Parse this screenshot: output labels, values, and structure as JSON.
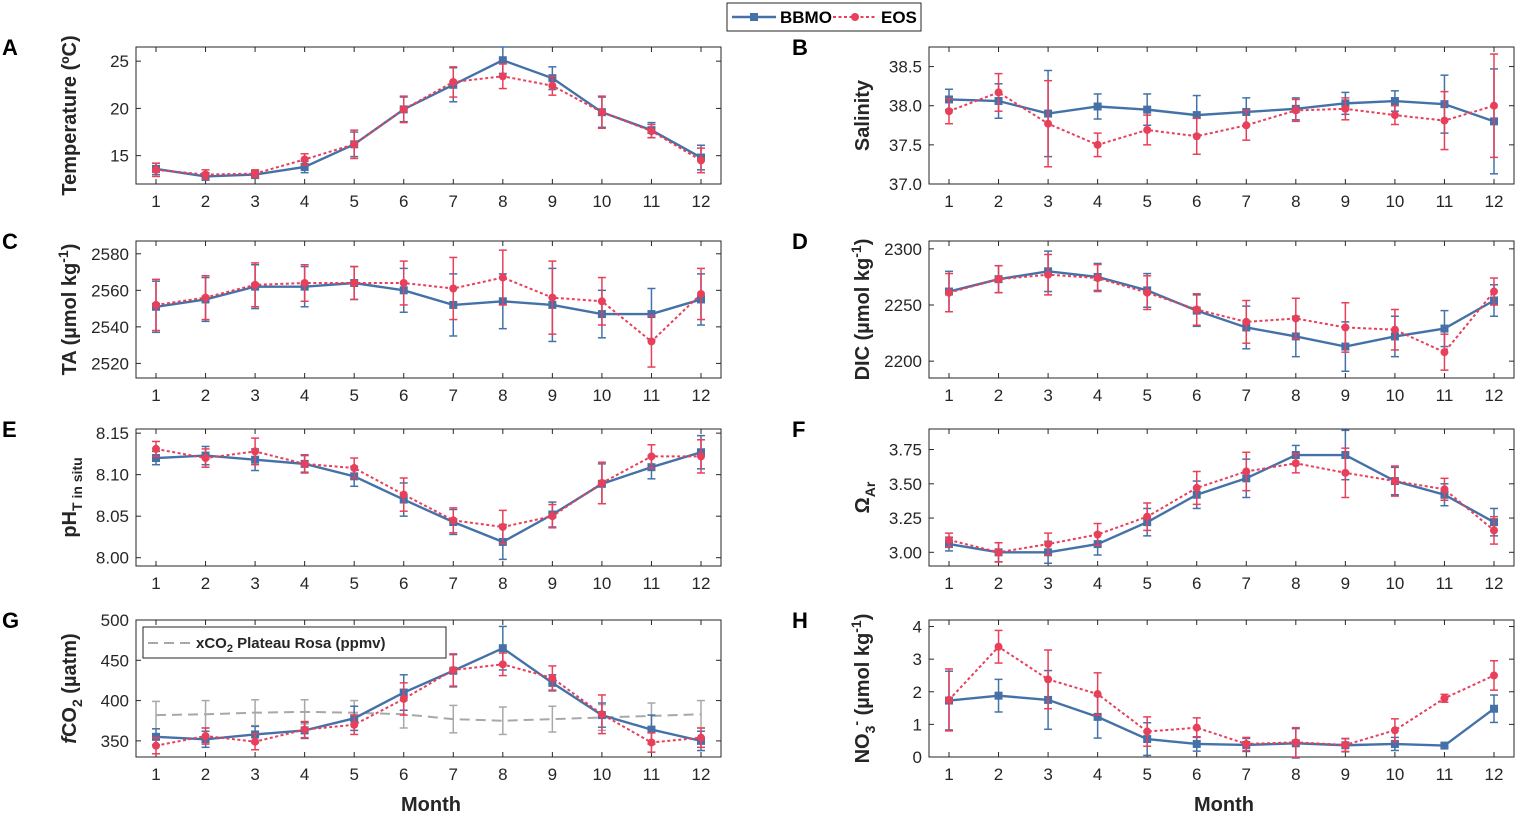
{
  "figure": {
    "legend": {
      "series1": "BBMO",
      "series2": "EOS"
    },
    "xlabel": "Month",
    "colors": {
      "BBMO": "#4472a8",
      "EOS": "#e8405a",
      "ref": "#a8a8a8",
      "axis": "#262626"
    }
  },
  "chart_data": [
    {
      "panel": "A",
      "type": "line",
      "ylabel_main": "Temperature (ºC)",
      "ylabel_sub": "",
      "ylabel_tail": "",
      "ylabel_sup": "",
      "ylim": [
        12,
        26.5
      ],
      "yticks": [
        "15",
        "20",
        "25"
      ],
      "ytick_values": [
        15,
        20,
        25
      ],
      "x": [
        1,
        2,
        3,
        4,
        5,
        6,
        7,
        8,
        9,
        10,
        11,
        12
      ],
      "series": [
        {
          "name": "BBMO",
          "values": [
            13.6,
            12.8,
            13.0,
            13.8,
            16.2,
            19.9,
            22.5,
            25.1,
            23.2,
            19.6,
            17.7,
            14.8
          ],
          "errors": [
            0.6,
            0.4,
            0.4,
            0.6,
            1.3,
            1.3,
            1.8,
            1.4,
            1.2,
            1.6,
            0.8,
            1.3
          ]
        },
        {
          "name": "EOS",
          "values": [
            13.5,
            13.0,
            13.1,
            14.6,
            16.2,
            19.9,
            22.8,
            23.4,
            22.4,
            19.6,
            17.6,
            14.5
          ],
          "errors": [
            0.7,
            0.5,
            0.4,
            0.6,
            1.5,
            1.4,
            1.6,
            1.3,
            1.0,
            1.7,
            0.7,
            1.3
          ]
        }
      ]
    },
    {
      "panel": "B",
      "type": "line",
      "ylabel_main": "Salinity",
      "ylabel_sub": "",
      "ylabel_tail": "",
      "ylabel_sup": "",
      "ylim": [
        37.0,
        38.75
      ],
      "yticks": [
        "37.0",
        "37.5",
        "38.0",
        "38.5"
      ],
      "ytick_values": [
        37.0,
        37.5,
        38.0,
        38.5
      ],
      "x": [
        1,
        2,
        3,
        4,
        5,
        6,
        7,
        8,
        9,
        10,
        11,
        12
      ],
      "series": [
        {
          "name": "BBMO",
          "values": [
            38.08,
            38.06,
            37.9,
            37.99,
            37.95,
            37.88,
            37.92,
            37.96,
            38.03,
            38.06,
            38.02,
            37.8
          ],
          "errors": [
            0.13,
            0.22,
            0.55,
            0.16,
            0.2,
            0.25,
            0.18,
            0.14,
            0.14,
            0.13,
            0.37,
            0.67
          ]
        },
        {
          "name": "EOS",
          "values": [
            37.93,
            38.17,
            37.77,
            37.5,
            37.69,
            37.61,
            37.75,
            37.94,
            37.96,
            37.88,
            37.81,
            38.0
          ],
          "errors": [
            0.16,
            0.24,
            0.55,
            0.15,
            0.19,
            0.23,
            0.19,
            0.14,
            0.14,
            0.12,
            0.37,
            0.66
          ]
        }
      ]
    },
    {
      "panel": "C",
      "type": "line",
      "ylabel_main": "TA (µmol kg",
      "ylabel_sub": "",
      "ylabel_tail": ")",
      "ylabel_sup": "-1",
      "ylim": [
        2512,
        2587
      ],
      "yticks": [
        "2520",
        "2540",
        "2560",
        "2580"
      ],
      "ytick_values": [
        2520,
        2540,
        2560,
        2580
      ],
      "x": [
        1,
        2,
        3,
        4,
        5,
        6,
        7,
        8,
        9,
        10,
        11,
        12
      ],
      "series": [
        {
          "name": "BBMO",
          "values": [
            2551,
            2555,
            2562,
            2562,
            2564,
            2560,
            2552,
            2554,
            2552,
            2547,
            2547,
            2555
          ],
          "errors": [
            14,
            12,
            12,
            11,
            9,
            12,
            17,
            15,
            20,
            13,
            14,
            14
          ]
        },
        {
          "name": "EOS",
          "values": [
            2552,
            2556,
            2563,
            2564,
            2564,
            2564,
            2561,
            2567,
            2556,
            2554,
            2532,
            2558
          ],
          "errors": [
            14,
            12,
            12,
            10,
            9,
            12,
            17,
            15,
            20,
            13,
            14,
            14
          ]
        }
      ]
    },
    {
      "panel": "D",
      "type": "line",
      "ylabel_main": "DIC (µmol kg",
      "ylabel_sub": "",
      "ylabel_tail": ")",
      "ylabel_sup": "-1",
      "ylim": [
        2185,
        2307
      ],
      "yticks": [
        "2200",
        "2250",
        "2300"
      ],
      "ytick_values": [
        2200,
        2250,
        2300
      ],
      "x": [
        1,
        2,
        3,
        4,
        5,
        6,
        7,
        8,
        9,
        10,
        11,
        12
      ],
      "series": [
        {
          "name": "BBMO",
          "values": [
            2262,
            2273,
            2280,
            2275,
            2263,
            2245,
            2230,
            2222,
            2213,
            2222,
            2229,
            2254
          ],
          "errors": [
            18,
            12,
            18,
            12,
            15,
            14,
            19,
            18,
            22,
            18,
            16,
            14
          ]
        },
        {
          "name": "EOS",
          "values": [
            2261,
            2273,
            2277,
            2274,
            2261,
            2246,
            2235,
            2238,
            2230,
            2228,
            2208,
            2262
          ],
          "errors": [
            17,
            12,
            18,
            12,
            15,
            14,
            19,
            18,
            22,
            18,
            16,
            12
          ]
        }
      ]
    },
    {
      "panel": "E",
      "type": "line",
      "ylabel_main": "pH",
      "ylabel_sub": "T in situ",
      "ylabel_tail": "",
      "ylabel_sup": "",
      "ylim": [
        7.99,
        8.155
      ],
      "yticks": [
        "8.00",
        "8.05",
        "8.10",
        "8.15"
      ],
      "ytick_values": [
        8.0,
        8.05,
        8.1,
        8.15
      ],
      "x": [
        1,
        2,
        3,
        4,
        5,
        6,
        7,
        8,
        9,
        10,
        11,
        12
      ],
      "series": [
        {
          "name": "BBMO",
          "values": [
            8.12,
            8.123,
            8.118,
            8.113,
            8.098,
            8.07,
            8.043,
            8.019,
            8.052,
            8.089,
            8.109,
            8.127
          ],
          "errors": [
            0.008,
            0.011,
            0.013,
            0.01,
            0.012,
            0.02,
            0.015,
            0.021,
            0.015,
            0.024,
            0.014,
            0.02
          ]
        },
        {
          "name": "EOS",
          "values": [
            8.131,
            8.12,
            8.128,
            8.113,
            8.108,
            8.076,
            8.045,
            8.037,
            8.05,
            8.09,
            8.122,
            8.122
          ],
          "errors": [
            0.009,
            0.011,
            0.016,
            0.011,
            0.012,
            0.02,
            0.015,
            0.02,
            0.014,
            0.025,
            0.014,
            0.02
          ]
        }
      ]
    },
    {
      "panel": "F",
      "type": "line",
      "ylabel_main": "Ω",
      "ylabel_sub": "Ar",
      "ylabel_tail": "",
      "ylabel_sup": "",
      "ylim": [
        2.9,
        3.9
      ],
      "yticks": [
        "3.00",
        "3.25",
        "3.50",
        "3.75"
      ],
      "ytick_values": [
        3.0,
        3.25,
        3.5,
        3.75
      ],
      "x": [
        1,
        2,
        3,
        4,
        5,
        6,
        7,
        8,
        9,
        10,
        11,
        12
      ],
      "series": [
        {
          "name": "BBMO",
          "values": [
            3.06,
            3.0,
            3.0,
            3.06,
            3.22,
            3.42,
            3.54,
            3.71,
            3.71,
            3.52,
            3.42,
            3.22
          ],
          "errors": [
            0.05,
            0.07,
            0.08,
            0.08,
            0.1,
            0.1,
            0.14,
            0.07,
            0.18,
            0.1,
            0.08,
            0.1
          ]
        },
        {
          "name": "EOS",
          "values": [
            3.09,
            3.0,
            3.06,
            3.13,
            3.26,
            3.47,
            3.59,
            3.65,
            3.58,
            3.52,
            3.46,
            3.16
          ],
          "errors": [
            0.05,
            0.07,
            0.08,
            0.08,
            0.1,
            0.12,
            0.14,
            0.07,
            0.18,
            0.11,
            0.08,
            0.1
          ]
        }
      ]
    },
    {
      "panel": "G",
      "type": "line",
      "ylabel_main": "CO",
      "ylabel_italic": "f",
      "ylabel_sub": "2",
      "ylabel_tail": " (µatm)",
      "ylabel_sup": "",
      "ylim": [
        330,
        500
      ],
      "yticks": [
        "350",
        "400",
        "450",
        "500"
      ],
      "ytick_values": [
        350,
        400,
        450,
        500
      ],
      "x": [
        1,
        2,
        3,
        4,
        5,
        6,
        7,
        8,
        9,
        10,
        11,
        12
      ],
      "inset_legend": {
        "main": "xCO",
        "sub": "2",
        "tail": " Plateau Rosa (ppmv)"
      },
      "series": [
        {
          "name": "BBMO",
          "values": [
            355,
            352,
            358,
            363,
            378,
            410,
            437,
            465,
            422,
            382,
            364,
            350
          ],
          "errors": [
            10,
            10,
            10,
            10,
            15,
            22,
            20,
            27,
            10,
            15,
            18,
            12
          ]
        },
        {
          "name": "EOS",
          "values": [
            344,
            356,
            349,
            364,
            370,
            402,
            438,
            445,
            428,
            383,
            348,
            354
          ],
          "errors": [
            10,
            10,
            10,
            10,
            12,
            20,
            20,
            14,
            15,
            24,
            12,
            12
          ]
        },
        {
          "name": "xCO2 Plateau Rosa (ppmv)",
          "values": [
            382,
            383,
            385,
            386,
            385,
            383,
            377,
            375,
            377,
            379,
            381,
            383
          ],
          "errors": [
            17,
            17,
            16,
            15,
            15,
            17,
            17,
            17,
            16,
            16,
            16,
            17
          ]
        }
      ]
    },
    {
      "panel": "H",
      "type": "line",
      "ylabel_main": "NO",
      "ylabel_sub": "3",
      "ylabel_tail": " (µmol kg",
      "ylabel_sup": "-",
      "ylabel_sup2": "-1",
      "ylabel_end": ")",
      "ylim": [
        0,
        4.2
      ],
      "yticks": [
        "0",
        "1",
        "2",
        "3",
        "4"
      ],
      "ytick_values": [
        0,
        1,
        2,
        3,
        4
      ],
      "x": [
        1,
        2,
        3,
        4,
        5,
        6,
        7,
        8,
        9,
        10,
        11,
        12
      ],
      "series": [
        {
          "name": "BBMO",
          "values": [
            1.73,
            1.88,
            1.75,
            1.23,
            0.55,
            0.4,
            0.37,
            0.42,
            0.36,
            0.4,
            0.35,
            1.48
          ],
          "errors": [
            0.9,
            0.5,
            0.9,
            0.65,
            0.5,
            0.22,
            0.2,
            0.45,
            0.2,
            0.2,
            0.05,
            0.42
          ]
        },
        {
          "name": "EOS",
          "values": [
            1.75,
            3.38,
            2.38,
            1.93,
            0.78,
            0.9,
            0.4,
            0.45,
            0.37,
            0.82,
            1.8,
            2.5
          ],
          "errors": [
            0.95,
            0.5,
            0.9,
            0.65,
            0.45,
            0.3,
            0.2,
            0.45,
            0.2,
            0.35,
            0.12,
            0.45
          ]
        }
      ]
    }
  ]
}
